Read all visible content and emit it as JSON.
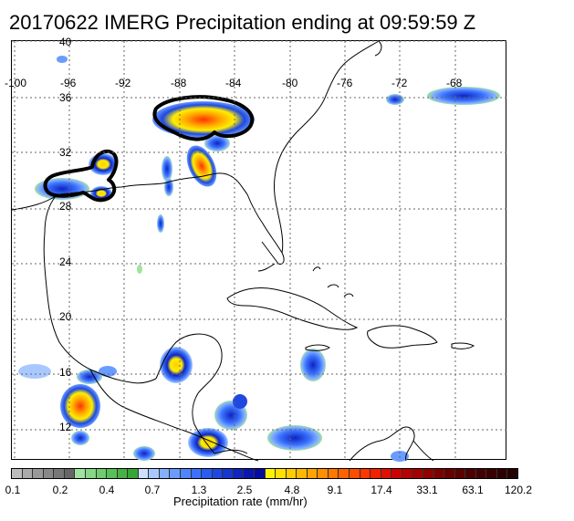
{
  "title": "20170622 IMERG Precipitation ending at 09:59:59 Z",
  "lon_labels": [
    "-100",
    "-96",
    "-92",
    "-88",
    "-84",
    "-80",
    "-76",
    "-72",
    "-68"
  ],
  "lat_labels": [
    "40",
    "36",
    "32",
    "28",
    "24",
    "20",
    "16",
    "12"
  ],
  "colorbar": {
    "title": "Precipitation rate (mm/hr)",
    "tick_labels": [
      "0.1",
      "0.2",
      "0.4",
      "0.7",
      "1.3",
      "2.5",
      "4.8",
      "9.1",
      "17.4",
      "33.1",
      "63.1",
      "120.2"
    ],
    "colors": [
      "#bdbdbd",
      "#aaaaaa",
      "#999999",
      "#888888",
      "#777777",
      "#666666",
      "#9fe39f",
      "#86d886",
      "#6fcc6f",
      "#59bf59",
      "#46b246",
      "#36a636",
      "#cfe0ff",
      "#a9c8ff",
      "#85b0ff",
      "#6a9cff",
      "#4f86ff",
      "#3a72ff",
      "#2a5cf0",
      "#1f48e0",
      "#1636d0",
      "#0f24c0",
      "#0a16b0",
      "#060ca0",
      "#fff200",
      "#ffe000",
      "#ffcc00",
      "#ffb800",
      "#ffa300",
      "#ff8e00",
      "#ff7800",
      "#ff6200",
      "#ff4d00",
      "#ff3600",
      "#f52000",
      "#e01000",
      "#cc0000",
      "#b80000",
      "#a40000",
      "#900000",
      "#7c0000",
      "#680000",
      "#5a0000",
      "#4d0000",
      "#420000",
      "#380000",
      "#2e0000",
      "#240000"
    ]
  }
}
